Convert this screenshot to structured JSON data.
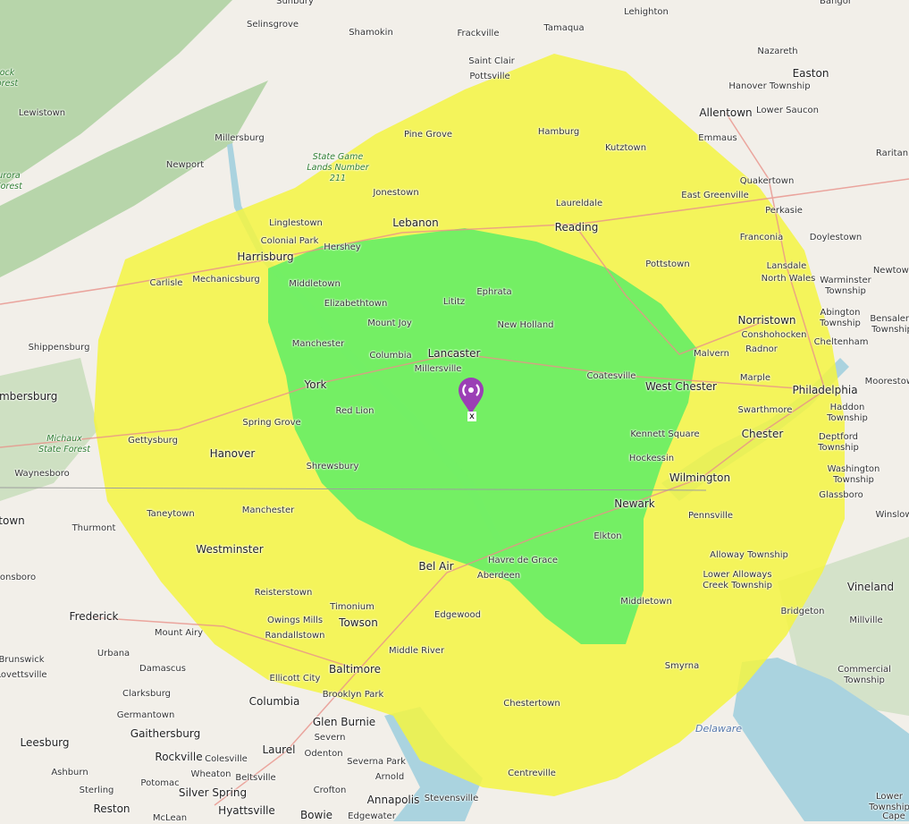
{
  "map": {
    "colors": {
      "land": "#f2efe9",
      "coverage_strong": "#66ee66",
      "coverage_weak": "#f5f542",
      "water": "#aad3df",
      "forest": "#a8cf9a",
      "marker": "#9b3fb5"
    },
    "marker": {
      "icon": "radio-tower-pin-icon",
      "label": "x"
    },
    "places": [
      {
        "text": "Sunbury",
        "kind": "town"
      },
      {
        "text": "Lehighton",
        "kind": "town"
      },
      {
        "text": "Bangor",
        "kind": "town"
      },
      {
        "text": "Selinsgrove",
        "kind": "town"
      },
      {
        "text": "Shamokin",
        "kind": "town"
      },
      {
        "text": "Frackville",
        "kind": "town"
      },
      {
        "text": "Tamaqua",
        "kind": "town"
      },
      {
        "text": "Nazareth",
        "kind": "town"
      },
      {
        "text": "Easton",
        "kind": "city"
      },
      {
        "text": "Saint Clair",
        "kind": "town"
      },
      {
        "text": "Pottsville",
        "kind": "town"
      },
      {
        "text": "Hanover Township",
        "kind": "town"
      },
      {
        "text": "Allentown",
        "kind": "city"
      },
      {
        "text": "Lower Saucon",
        "kind": "town"
      },
      {
        "text": "Lewistown",
        "kind": "town"
      },
      {
        "text": "Millersburg",
        "kind": "town"
      },
      {
        "text": "Pine Grove",
        "kind": "town"
      },
      {
        "text": "Hamburg",
        "kind": "town"
      },
      {
        "text": "Emmaus",
        "kind": "town"
      },
      {
        "text": "Kutztown",
        "kind": "town"
      },
      {
        "text": "Raritan",
        "kind": "town"
      },
      {
        "text": "Newport",
        "kind": "town"
      },
      {
        "text": "State Game\nLands Number\n211",
        "kind": "forest"
      },
      {
        "text": "Quakertown",
        "kind": "town"
      },
      {
        "text": "Jonestown",
        "kind": "town"
      },
      {
        "text": "East Greenville",
        "kind": "town"
      },
      {
        "text": "Laureldale",
        "kind": "town"
      },
      {
        "text": "Perkasie",
        "kind": "town"
      },
      {
        "text": "Linglestown",
        "kind": "town"
      },
      {
        "text": "Lebanon",
        "kind": "city"
      },
      {
        "text": "Reading",
        "kind": "city"
      },
      {
        "text": "Colonial Park",
        "kind": "town"
      },
      {
        "text": "Hershey",
        "kind": "town"
      },
      {
        "text": "Franconia",
        "kind": "town"
      },
      {
        "text": "Doylestown",
        "kind": "town"
      },
      {
        "text": "Harrisburg",
        "kind": "city"
      },
      {
        "text": "Pottstown",
        "kind": "town"
      },
      {
        "text": "Lansdale",
        "kind": "town"
      },
      {
        "text": "Newtown",
        "kind": "town"
      },
      {
        "text": "Carlisle",
        "kind": "town"
      },
      {
        "text": "Mechanicsburg",
        "kind": "town"
      },
      {
        "text": "Middletown",
        "kind": "town"
      },
      {
        "text": "North Wales",
        "kind": "town"
      },
      {
        "text": "Warminster\nTownship",
        "kind": "town"
      },
      {
        "text": "Ephrata",
        "kind": "town"
      },
      {
        "text": "Lititz",
        "kind": "town"
      },
      {
        "text": "Elizabethtown",
        "kind": "town"
      },
      {
        "text": "Norristown",
        "kind": "city"
      },
      {
        "text": "Abington\nTownship",
        "kind": "town"
      },
      {
        "text": "Bensalem\nTownship",
        "kind": "town"
      },
      {
        "text": "Mount Joy",
        "kind": "town"
      },
      {
        "text": "New Holland",
        "kind": "town"
      },
      {
        "text": "Conshohocken",
        "kind": "town"
      },
      {
        "text": "Cheltenham",
        "kind": "town"
      },
      {
        "text": "Shippensburg",
        "kind": "town"
      },
      {
        "text": "Manchester",
        "kind": "town"
      },
      {
        "text": "Columbia",
        "kind": "town"
      },
      {
        "text": "Lancaster",
        "kind": "city"
      },
      {
        "text": "Malvern",
        "kind": "town"
      },
      {
        "text": "Radnor",
        "kind": "town"
      },
      {
        "text": "Millersville",
        "kind": "town"
      },
      {
        "text": "Coatesville",
        "kind": "town"
      },
      {
        "text": "Marple",
        "kind": "town"
      },
      {
        "text": "Moorestown",
        "kind": "town"
      },
      {
        "text": "York",
        "kind": "city"
      },
      {
        "text": "Philadelphia",
        "kind": "city"
      },
      {
        "text": "West Chester",
        "kind": "city"
      },
      {
        "text": "Haddon Township",
        "kind": "town"
      },
      {
        "text": "Chambersburg",
        "kind": "city"
      },
      {
        "text": "Red Lion",
        "kind": "town"
      },
      {
        "text": "Swarthmore",
        "kind": "town"
      },
      {
        "text": "Spring Grove",
        "kind": "town"
      },
      {
        "text": "Kennett Square",
        "kind": "town"
      },
      {
        "text": "Chester",
        "kind": "city"
      },
      {
        "text": "Deptford Township",
        "kind": "town"
      },
      {
        "text": "Gettysburg",
        "kind": "town"
      },
      {
        "text": "Michaux\nState Forest",
        "kind": "forest"
      },
      {
        "text": "Hanover",
        "kind": "city"
      },
      {
        "text": "Hockessin",
        "kind": "town"
      },
      {
        "text": "Shrewsbury",
        "kind": "town"
      },
      {
        "text": "Washington\nTownship",
        "kind": "town"
      },
      {
        "text": "Waynesboro",
        "kind": "town"
      },
      {
        "text": "Wilmington",
        "kind": "city"
      },
      {
        "text": "Glassboro",
        "kind": "town"
      },
      {
        "text": "Newark",
        "kind": "city"
      },
      {
        "text": "Taneytown",
        "kind": "town"
      },
      {
        "text": "Manchester",
        "kind": "town"
      },
      {
        "text": "Pennsville",
        "kind": "town"
      },
      {
        "text": "Winslow",
        "kind": "town"
      },
      {
        "text": "town",
        "kind": "city"
      },
      {
        "text": "Thurmont",
        "kind": "town"
      },
      {
        "text": "Elkton",
        "kind": "town"
      },
      {
        "text": "Westminster",
        "kind": "city"
      },
      {
        "text": "Bel Air",
        "kind": "city"
      },
      {
        "text": "Havre de Grace",
        "kind": "town"
      },
      {
        "text": "Aberdeen",
        "kind": "town"
      },
      {
        "text": "Alloway Township",
        "kind": "town"
      },
      {
        "text": "Lower Alloways\nCreek Township",
        "kind": "town"
      },
      {
        "text": "Vineland",
        "kind": "city"
      },
      {
        "text": "onsboro",
        "kind": "town"
      },
      {
        "text": "Reisterstown",
        "kind": "town"
      },
      {
        "text": "Timonium",
        "kind": "town"
      },
      {
        "text": "Middletown",
        "kind": "town"
      },
      {
        "text": "Frederick",
        "kind": "city"
      },
      {
        "text": "Edgewood",
        "kind": "town"
      },
      {
        "text": "Owings Mills",
        "kind": "town"
      },
      {
        "text": "Towson",
        "kind": "city"
      },
      {
        "text": "Bridgeton",
        "kind": "town"
      },
      {
        "text": "Millville",
        "kind": "town"
      },
      {
        "text": "Mount Airy",
        "kind": "town"
      },
      {
        "text": "Randallstown",
        "kind": "town"
      },
      {
        "text": "Middle River",
        "kind": "town"
      },
      {
        "text": "Urbana",
        "kind": "town"
      },
      {
        "text": "Brunswick",
        "kind": "town"
      },
      {
        "text": "Lovettsville",
        "kind": "town"
      },
      {
        "text": "Damascus",
        "kind": "town"
      },
      {
        "text": "Baltimore",
        "kind": "city"
      },
      {
        "text": "Smyrna",
        "kind": "town"
      },
      {
        "text": "Commercial\nTownship",
        "kind": "town"
      },
      {
        "text": "Ellicott City",
        "kind": "town"
      },
      {
        "text": "Brooklyn Park",
        "kind": "town"
      },
      {
        "text": "Clarksburg",
        "kind": "town"
      },
      {
        "text": "Columbia",
        "kind": "city"
      },
      {
        "text": "Chestertown",
        "kind": "town"
      },
      {
        "text": "Germantown",
        "kind": "town"
      },
      {
        "text": "Glen Burnie",
        "kind": "city"
      },
      {
        "text": "Delaware",
        "kind": "water"
      },
      {
        "text": "Gaithersburg",
        "kind": "city"
      },
      {
        "text": "Leesburg",
        "kind": "city"
      },
      {
        "text": "Severn",
        "kind": "town"
      },
      {
        "text": "Laurel",
        "kind": "city"
      },
      {
        "text": "Rockville",
        "kind": "city"
      },
      {
        "text": "Odenton",
        "kind": "town"
      },
      {
        "text": "Colesville",
        "kind": "town"
      },
      {
        "text": "Severna Park",
        "kind": "town"
      },
      {
        "text": "Wheaton",
        "kind": "town"
      },
      {
        "text": "Beltsville",
        "kind": "town"
      },
      {
        "text": "Arnold",
        "kind": "town"
      },
      {
        "text": "Centreville",
        "kind": "town"
      },
      {
        "text": "Ashburn",
        "kind": "town"
      },
      {
        "text": "Potomac",
        "kind": "town"
      },
      {
        "text": "Silver Spring",
        "kind": "city"
      },
      {
        "text": "Sterling",
        "kind": "town"
      },
      {
        "text": "Crofton",
        "kind": "town"
      },
      {
        "text": "Annapolis",
        "kind": "city"
      },
      {
        "text": "Stevensville",
        "kind": "town"
      },
      {
        "text": "Lower Township",
        "kind": "town"
      },
      {
        "text": "Reston",
        "kind": "city"
      },
      {
        "text": "Hyattsville",
        "kind": "city"
      },
      {
        "text": "Bowie",
        "kind": "city"
      },
      {
        "text": "McLean",
        "kind": "town"
      },
      {
        "text": "Edgewater",
        "kind": "town"
      },
      {
        "text": "Cape",
        "kind": "town"
      },
      {
        "text": "ock\norest",
        "kind": "forest"
      },
      {
        "text": "urora\nForest",
        "kind": "forest"
      }
    ]
  }
}
